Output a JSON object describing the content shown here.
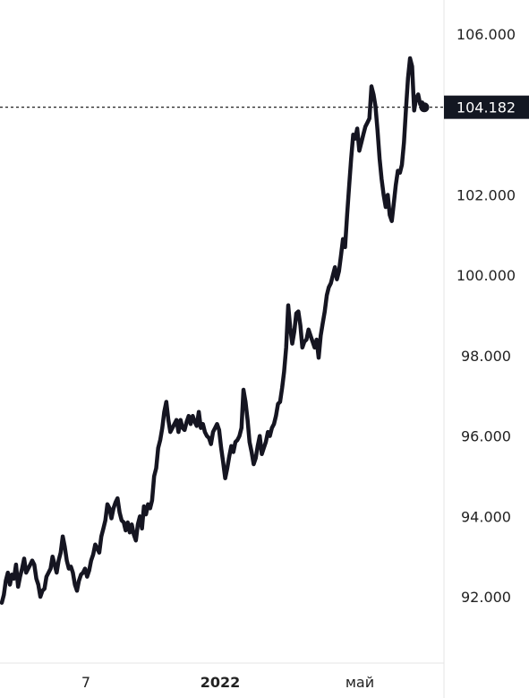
{
  "chart_data": {
    "type": "line",
    "title": "",
    "xlabel": "",
    "ylabel": "",
    "ylim": [
      90.35,
      106.85
    ],
    "y_ticks": [
      {
        "value": 106,
        "label": "106.000"
      },
      {
        "value": 102,
        "label": "102.000"
      },
      {
        "value": 100,
        "label": "100.000"
      },
      {
        "value": 98,
        "label": "98.000"
      },
      {
        "value": 96,
        "label": "96.000"
      },
      {
        "value": 94,
        "label": "94.000"
      },
      {
        "value": 92,
        "label": "92.000"
      }
    ],
    "x_ticks": [
      {
        "label": "7",
        "bold": false
      },
      {
        "label": "2022",
        "bold": true
      },
      {
        "label": "май",
        "bold": false
      }
    ],
    "current_price": {
      "value": 104.182,
      "label": "104.182"
    },
    "series": [
      {
        "color": "#151521",
        "values": [
          91.85,
          92.05,
          92.4,
          92.6,
          92.3,
          92.55,
          92.45,
          92.8,
          92.25,
          92.5,
          92.7,
          92.95,
          92.6,
          92.7,
          92.8,
          92.9,
          92.8,
          92.45,
          92.3,
          92.0,
          92.15,
          92.2,
          92.5,
          92.6,
          92.7,
          93.0,
          92.8,
          92.6,
          92.9,
          93.1,
          93.5,
          93.25,
          92.9,
          92.7,
          92.75,
          92.6,
          92.3,
          92.15,
          92.4,
          92.55,
          92.6,
          92.7,
          92.5,
          92.65,
          92.9,
          93.05,
          93.3,
          93.2,
          93.1,
          93.5,
          93.7,
          93.9,
          94.3,
          94.2,
          93.95,
          94.2,
          94.35,
          94.45,
          94.1,
          93.9,
          93.85,
          93.65,
          93.85,
          93.6,
          93.8,
          93.55,
          93.4,
          93.8,
          94.0,
          93.7,
          94.25,
          94.05,
          94.3,
          94.2,
          94.4,
          95.0,
          95.2,
          95.7,
          95.9,
          96.2,
          96.6,
          96.85,
          96.4,
          96.1,
          96.2,
          96.3,
          96.4,
          96.1,
          96.4,
          96.2,
          96.15,
          96.35,
          96.5,
          96.3,
          96.5,
          96.35,
          96.25,
          96.6,
          96.2,
          96.3,
          96.1,
          96.0,
          95.95,
          95.8,
          96.1,
          96.2,
          96.3,
          96.15,
          95.7,
          95.35,
          94.95,
          95.2,
          95.5,
          95.75,
          95.6,
          95.85,
          95.9,
          96.0,
          96.2,
          97.15,
          96.85,
          96.4,
          95.85,
          95.6,
          95.3,
          95.45,
          95.75,
          96.0,
          95.55,
          95.7,
          95.85,
          96.1,
          96.0,
          96.2,
          96.3,
          96.5,
          96.8,
          96.85,
          97.2,
          97.6,
          98.2,
          99.25,
          98.7,
          98.3,
          98.6,
          99.05,
          99.1,
          98.75,
          98.2,
          98.35,
          98.4,
          98.65,
          98.5,
          98.35,
          98.2,
          98.4,
          97.95,
          98.5,
          98.8,
          99.1,
          99.5,
          99.7,
          99.8,
          100.0,
          100.2,
          99.9,
          100.1,
          100.5,
          100.9,
          100.7,
          101.5,
          102.2,
          102.9,
          103.5,
          103.4,
          103.65,
          103.1,
          103.3,
          103.5,
          103.7,
          103.8,
          103.9,
          104.7,
          104.5,
          104.2,
          103.6,
          102.9,
          102.4,
          102.0,
          101.7,
          102.0,
          101.5,
          101.35,
          101.8,
          102.25,
          102.6,
          102.55,
          102.75,
          103.3,
          104.15,
          104.9,
          105.4,
          105.2,
          104.1,
          104.4,
          104.5,
          104.25,
          104.3,
          104.18
        ]
      }
    ],
    "grid": false,
    "legend": "none"
  }
}
